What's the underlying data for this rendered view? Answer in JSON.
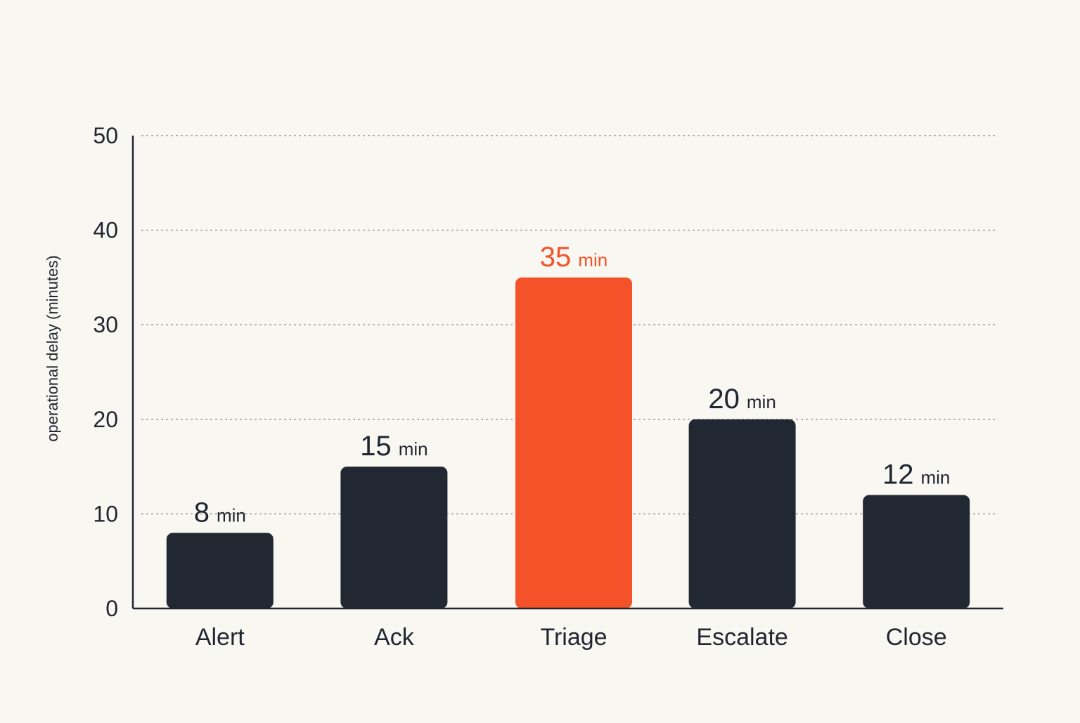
{
  "chart_data": {
    "type": "bar",
    "categories": [
      "Alert",
      "Ack",
      "Triage",
      "Escalate",
      "Close"
    ],
    "values": [
      8,
      15,
      35,
      20,
      12
    ],
    "value_unit": "min",
    "title": "",
    "xlabel": "",
    "ylabel": "operational delay (minutes)",
    "ylim": [
      0,
      50
    ],
    "yticks": [
      0,
      10,
      20,
      30,
      40,
      50
    ],
    "grid": true,
    "highlight_index": 2,
    "colors": {
      "bar": "#222831",
      "highlight": "#f4532a",
      "label": "#1f2630",
      "highlight_label": "#f4532a"
    }
  }
}
